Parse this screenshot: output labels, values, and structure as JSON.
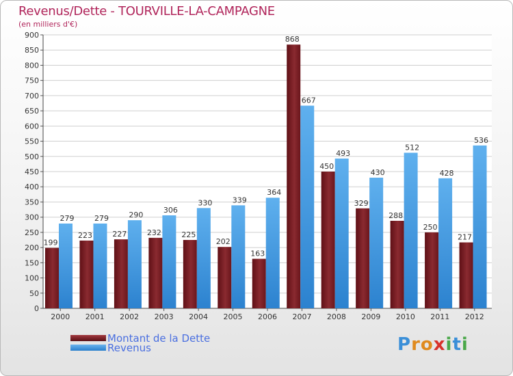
{
  "header": {
    "title": "Revenus/Dette - TOURVILLE-LA-CAMPAGNE",
    "subtitle": "(en milliers d'€)"
  },
  "chart_data": {
    "type": "bar",
    "title": "Revenus/Dette - TOURVILLE-LA-CAMPAGNE",
    "ylabel": "(en milliers d'€)",
    "xlabel": "",
    "categories": [
      "2000",
      "2001",
      "2002",
      "2003",
      "2004",
      "2005",
      "2006",
      "2007",
      "2008",
      "2009",
      "2010",
      "2011",
      "2012"
    ],
    "series": [
      {
        "name": "Montant de la Dette",
        "color": "#7a1c22",
        "values": [
          199,
          223,
          227,
          232,
          225,
          202,
          163,
          868,
          450,
          329,
          288,
          250,
          217
        ]
      },
      {
        "name": "Revenus",
        "color": "#3e97e0",
        "values": [
          279,
          279,
          290,
          306,
          330,
          339,
          364,
          667,
          493,
          430,
          512,
          428,
          536
        ]
      }
    ],
    "ylim": [
      0,
      900
    ],
    "yticks": [
      0,
      50,
      100,
      150,
      200,
      250,
      300,
      350,
      400,
      450,
      500,
      550,
      600,
      650,
      700,
      750,
      800,
      850,
      900
    ],
    "grid": true,
    "legend": "bottom-left"
  },
  "legend": {
    "items": [
      {
        "label": "Montant de la Dette",
        "color": "#7a1c22"
      },
      {
        "label": "Revenus",
        "color": "#3e97e0"
      }
    ]
  },
  "logo": {
    "letters": [
      "P",
      "r",
      "o",
      "x",
      "i",
      "t",
      "i"
    ],
    "colors": [
      "#3a8fd8",
      "#e08a1e",
      "#e08a1e",
      "#d8322b",
      "#4aa84a",
      "#3a8fd8",
      "#4aa84a"
    ]
  }
}
